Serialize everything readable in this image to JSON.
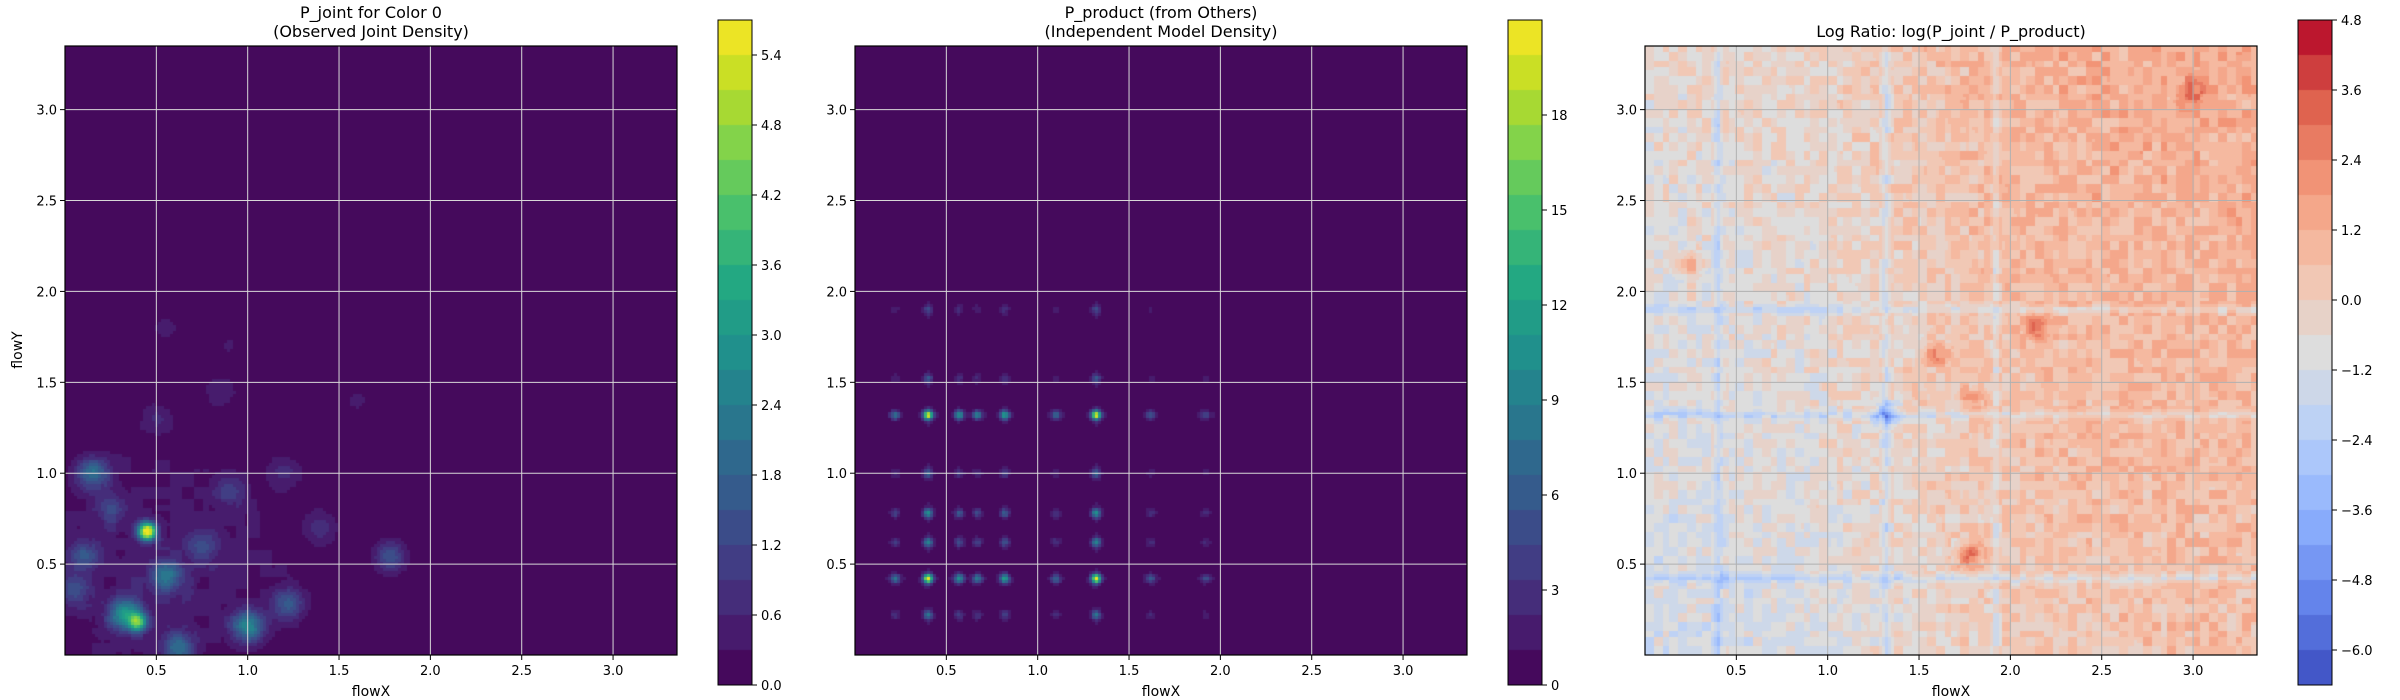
{
  "figure": {
    "panels": [
      {
        "title_line1": "P_joint for Color 0",
        "title_line2": "(Observed Joint Density)",
        "xlabel": "flowX",
        "ylabel": "flowY"
      },
      {
        "title_line1": "P_product (from Others)",
        "title_line2": "(Independent Model Density)",
        "xlabel": "flowX",
        "ylabel": ""
      },
      {
        "title_line1": "Log Ratio: log(P_joint / P_product)",
        "title_line2": "",
        "xlabel": "flowX",
        "ylabel": ""
      }
    ]
  },
  "chart_data": [
    {
      "type": "heatmap",
      "title": "P_joint for Color 0\n(Observed Joint Density)",
      "xlabel": "flowX",
      "ylabel": "flowY",
      "xlim": [
        0.0,
        3.35
      ],
      "ylim": [
        0.0,
        3.35
      ],
      "x_ticks": [
        "0.5",
        "1.0",
        "1.5",
        "2.0",
        "2.5",
        "3.0"
      ],
      "y_ticks": [
        "0.5",
        "1.0",
        "1.5",
        "2.0",
        "2.5",
        "3.0"
      ],
      "grid": true,
      "colormap": "viridis",
      "colorbar": {
        "min": 0.0,
        "max": 5.7,
        "ticks": [
          "0.0",
          "0.6",
          "1.2",
          "1.8",
          "2.4",
          "3.0",
          "3.6",
          "4.2",
          "4.8",
          "5.4"
        ]
      },
      "peaks": [
        {
          "x": 0.45,
          "y": 0.68,
          "value": 5.6
        },
        {
          "x": 0.4,
          "y": 0.18,
          "value": 3.2
        },
        {
          "x": 0.33,
          "y": 0.22,
          "value": 2.8
        },
        {
          "x": 1.0,
          "y": 0.16,
          "value": 2.4
        },
        {
          "x": 0.15,
          "y": 1.0,
          "value": 1.9
        },
        {
          "x": 0.55,
          "y": 0.44,
          "value": 1.8
        },
        {
          "x": 0.62,
          "y": 0.04,
          "value": 1.7
        },
        {
          "x": 1.78,
          "y": 0.54,
          "value": 1.4
        },
        {
          "x": 1.22,
          "y": 0.28,
          "value": 1.4
        },
        {
          "x": 0.1,
          "y": 0.55,
          "value": 1.2
        },
        {
          "x": 0.05,
          "y": 0.35,
          "value": 1.1
        },
        {
          "x": 0.75,
          "y": 0.6,
          "value": 1.0
        },
        {
          "x": 0.25,
          "y": 0.8,
          "value": 0.9
        },
        {
          "x": 0.9,
          "y": 0.9,
          "value": 0.8
        },
        {
          "x": 1.4,
          "y": 0.7,
          "value": 0.7
        },
        {
          "x": 1.2,
          "y": 1.0,
          "value": 0.6
        },
        {
          "x": 0.5,
          "y": 1.3,
          "value": 0.5
        },
        {
          "x": 0.85,
          "y": 1.45,
          "value": 0.5
        },
        {
          "x": 0.55,
          "y": 1.8,
          "value": 0.4
        },
        {
          "x": 1.6,
          "y": 1.4,
          "value": 0.35
        },
        {
          "x": 0.9,
          "y": 1.7,
          "value": 0.3
        }
      ]
    },
    {
      "type": "heatmap",
      "title": "P_product (from Others)\n(Independent Model Density)",
      "xlabel": "flowX",
      "ylabel": "",
      "xlim": [
        0.0,
        3.35
      ],
      "ylim": [
        0.0,
        3.35
      ],
      "x_ticks": [
        "0.5",
        "1.0",
        "1.5",
        "2.0",
        "2.5",
        "3.0"
      ],
      "y_ticks": [
        "0.5",
        "1.0",
        "1.5",
        "2.0",
        "2.5",
        "3.0"
      ],
      "grid": true,
      "colormap": "viridis",
      "colorbar": {
        "min": 0,
        "max": 21,
        "ticks": [
          "0",
          "3",
          "6",
          "9",
          "12",
          "15",
          "18"
        ]
      },
      "x_marginal_peaks": [
        {
          "x": 0.4,
          "weight": 1.0
        },
        {
          "x": 1.32,
          "weight": 1.0
        },
        {
          "x": 0.57,
          "weight": 0.5
        },
        {
          "x": 0.82,
          "weight": 0.55
        },
        {
          "x": 0.67,
          "weight": 0.4
        },
        {
          "x": 0.22,
          "weight": 0.35
        },
        {
          "x": 1.1,
          "weight": 0.3
        },
        {
          "x": 1.62,
          "weight": 0.25
        },
        {
          "x": 1.92,
          "weight": 0.2
        }
      ],
      "y_marginal_peaks": [
        {
          "y": 1.32,
          "weight": 1.0
        },
        {
          "y": 0.42,
          "weight": 1.0
        },
        {
          "y": 0.78,
          "weight": 0.5
        },
        {
          "y": 0.62,
          "weight": 0.45
        },
        {
          "y": 0.22,
          "weight": 0.35
        },
        {
          "y": 1.0,
          "weight": 0.3
        },
        {
          "y": 1.52,
          "weight": 0.25
        },
        {
          "y": 1.9,
          "weight": 0.2
        }
      ],
      "peaks": [
        {
          "x": 1.32,
          "y": 1.32,
          "value": 20.5
        },
        {
          "x": 0.4,
          "y": 1.32,
          "value": 19.0
        },
        {
          "x": 1.32,
          "y": 0.42,
          "value": 18.5
        },
        {
          "x": 0.4,
          "y": 0.42,
          "value": 17.0
        }
      ]
    },
    {
      "type": "heatmap",
      "title": "Log Ratio: log(P_joint / P_product)",
      "xlabel": "flowX",
      "ylabel": "",
      "xlim": [
        0.0,
        3.35
      ],
      "ylim": [
        0.0,
        3.35
      ],
      "x_ticks": [
        "0.5",
        "1.0",
        "1.5",
        "2.0",
        "2.5",
        "3.0"
      ],
      "y_ticks": [
        "0.5",
        "1.0",
        "1.5",
        "2.0",
        "2.5",
        "3.0"
      ],
      "grid": true,
      "colormap": "coolwarm",
      "colorbar": {
        "min": -6.6,
        "max": 4.8,
        "ticks": [
          "4.8",
          "3.6",
          "2.4",
          "1.2",
          "0.0",
          "−1.2",
          "−2.4",
          "−3.6",
          "−4.8",
          "−6.0"
        ]
      },
      "notable_features": [
        {
          "x": 1.32,
          "y": 1.32,
          "value": -2.6
        },
        {
          "x": 1.78,
          "y": 0.54,
          "value": 2.6
        },
        {
          "x": 2.15,
          "y": 1.8,
          "value": 2.2
        },
        {
          "x": 1.6,
          "y": 1.65,
          "value": 2.0
        },
        {
          "x": 0.25,
          "y": 2.15,
          "value": 1.6
        },
        {
          "x": 3.0,
          "y": 3.1,
          "value": 1.8
        },
        {
          "x": 1.8,
          "y": 1.4,
          "value": 1.6
        }
      ]
    }
  ]
}
